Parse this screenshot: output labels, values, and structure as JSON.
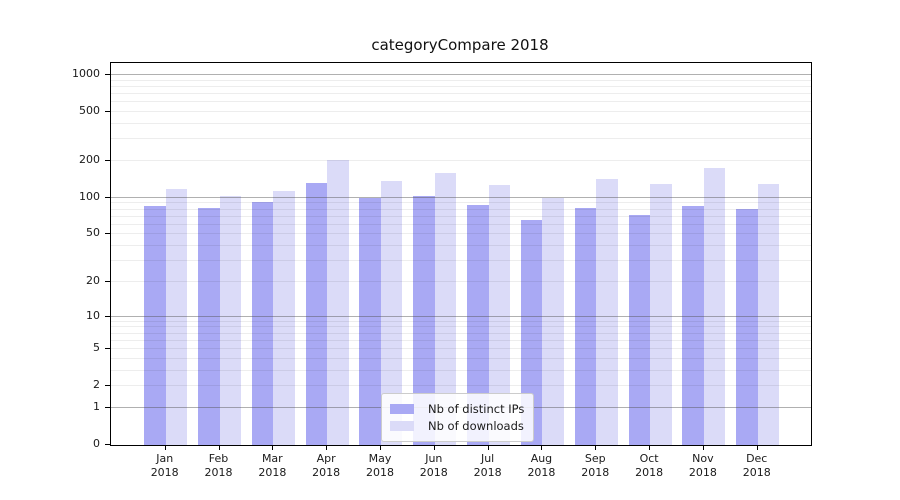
{
  "title": "categoryCompare 2018",
  "colors": {
    "distinct_ips": "#a9a9f4",
    "downloads": "#dbdbf8"
  },
  "chart_data": {
    "type": "bar",
    "title": "categoryCompare 2018",
    "months": [
      "Jan",
      "Feb",
      "Mar",
      "Apr",
      "May",
      "Jun",
      "Jul",
      "Aug",
      "Sep",
      "Oct",
      "Nov",
      "Dec"
    ],
    "year": "2018",
    "categories": [
      "Jan 2018",
      "Feb 2018",
      "Mar 2018",
      "Apr 2018",
      "May 2018",
      "Jun 2018",
      "Jul 2018",
      "Aug 2018",
      "Sep 2018",
      "Oct 2018",
      "Nov 2018",
      "Dec 2018"
    ],
    "series": [
      {
        "name": "Nb of distinct IPs",
        "values": [
          86,
          83,
          93,
          133,
          100,
          104,
          87,
          66,
          83,
          72,
          86,
          81
        ]
      },
      {
        "name": "Nb of downloads",
        "values": [
          118,
          104,
          114,
          205,
          137,
          160,
          127,
          99,
          142,
          130,
          175,
          130
        ]
      }
    ],
    "xlabel": "",
    "ylabel": "",
    "yscale": "log1p",
    "yticks": [
      0,
      1,
      2,
      5,
      10,
      20,
      50,
      100,
      200,
      500,
      1000
    ],
    "ylim": [
      0,
      1250
    ],
    "grid": "horizontal major and minor log gridlines, drawn over bars",
    "legend_position": "lower center"
  }
}
